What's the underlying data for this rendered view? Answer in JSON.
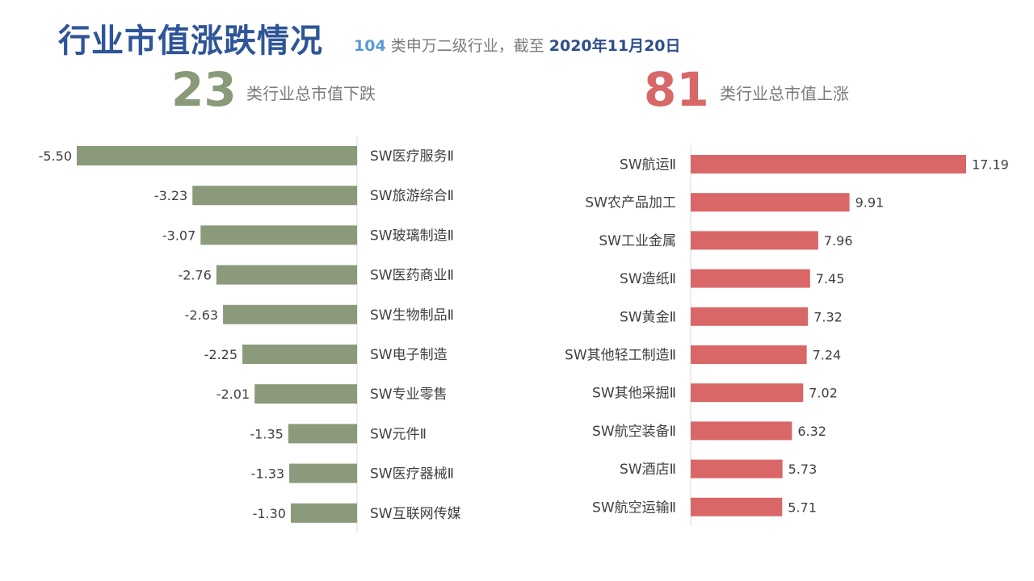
{
  "header": {
    "title": "行业市值涨跌情况",
    "subtitle_count": "104",
    "subtitle_mid": " 类申万二级行业，截至 ",
    "subtitle_date": "2020年11月20日"
  },
  "summary": {
    "down_count": "23",
    "down_label": "类行业总市值下跌",
    "up_count": "81",
    "up_label": "类行业总市值上涨"
  },
  "colors": {
    "down": "#8a9a7b",
    "up": "#d96767",
    "axis": "#d9d9d9",
    "text": "#404040"
  },
  "chart_data": [
    {
      "type": "bar",
      "orientation": "horizontal",
      "categories": [
        "SW医疗服务Ⅱ",
        "SW旅游综合Ⅱ",
        "SW玻璃制造Ⅱ",
        "SW医药商业Ⅱ",
        "SW生物制品Ⅱ",
        "SW电子制造",
        "SW专业零售",
        "SW元件Ⅱ",
        "SW医疗器械Ⅱ",
        "SW互联网传媒"
      ],
      "values": [
        -5.5,
        -3.23,
        -3.07,
        -2.76,
        -2.63,
        -2.25,
        -2.01,
        -1.35,
        -1.33,
        -1.3
      ],
      "labels": [
        "-5.50",
        "-3.23",
        "-3.07",
        "-2.76",
        "-2.63",
        "-2.25",
        "-2.01",
        "-1.35",
        "-1.33",
        "-1.30"
      ]
    },
    {
      "type": "bar",
      "orientation": "horizontal",
      "categories": [
        "SW航运Ⅱ",
        "SW农产品加工",
        "SW工业金属",
        "SW造纸Ⅱ",
        "SW黄金Ⅱ",
        "SW其他轻工制造Ⅱ",
        "SW其他采掘Ⅱ",
        "SW航空装备Ⅱ",
        "SW酒店Ⅱ",
        "SW航空运输Ⅱ"
      ],
      "values": [
        17.19,
        9.91,
        7.96,
        7.45,
        7.32,
        7.24,
        7.02,
        6.32,
        5.73,
        5.71
      ],
      "labels": [
        "17.19",
        "9.91",
        "7.96",
        "7.45",
        "7.32",
        "7.24",
        "7.02",
        "6.32",
        "5.73",
        "5.71"
      ]
    }
  ]
}
